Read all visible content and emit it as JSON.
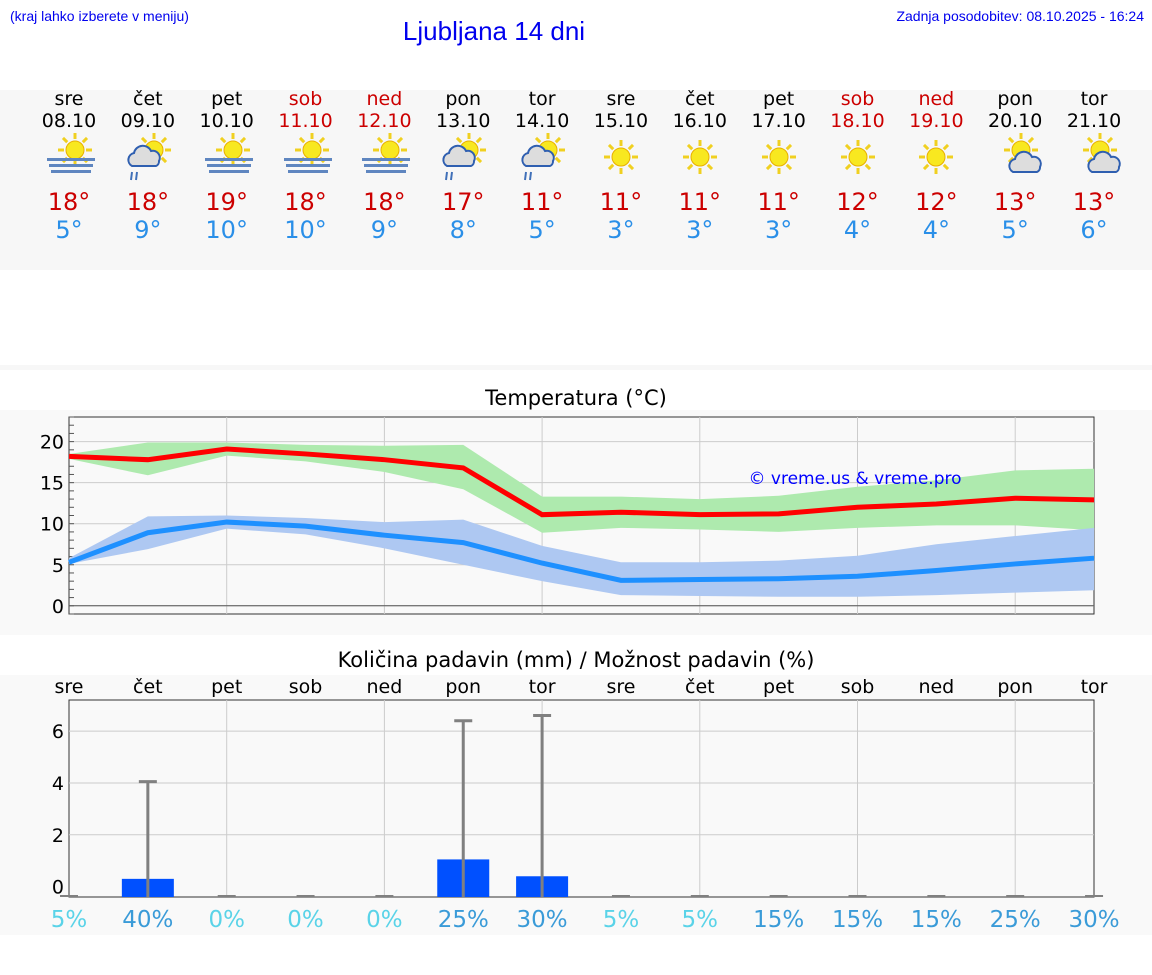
{
  "header": {
    "hint": "(kraj lahko izberete v meniju)",
    "title": "Ljubljana 14 dni",
    "updated": "Zadnja posodobitev: 08.10.2025 - 16:24"
  },
  "colors": {
    "weekday": "#000000",
    "weekend": "#cc0000",
    "max": "#cc0000",
    "min": "#2a8fe8",
    "max_line": "#ff0000",
    "min_line": "#1e90ff",
    "max_band": "#aeeaae",
    "min_band": "#aec8f2",
    "bar": "#0050ff",
    "whisker": "#808080",
    "pct_low": "#5ad3e8",
    "pct_high": "#3a9bd8"
  },
  "days": [
    {
      "name": "sre",
      "date": "08.10",
      "weekend": false,
      "icon": "sun-fog-icon",
      "max": "18°",
      "min": "5°"
    },
    {
      "name": "čet",
      "date": "09.10",
      "weekend": false,
      "icon": "sun-cloud-rain-icon",
      "max": "18°",
      "min": "9°"
    },
    {
      "name": "pet",
      "date": "10.10",
      "weekend": false,
      "icon": "sun-fog-icon",
      "max": "19°",
      "min": "10°"
    },
    {
      "name": "sob",
      "date": "11.10",
      "weekend": true,
      "icon": "sun-fog-icon",
      "max": "18°",
      "min": "10°"
    },
    {
      "name": "ned",
      "date": "12.10",
      "weekend": true,
      "icon": "sun-fog-icon",
      "max": "18°",
      "min": "9°"
    },
    {
      "name": "pon",
      "date": "13.10",
      "weekend": false,
      "icon": "sun-cloud-rain-icon",
      "max": "17°",
      "min": "8°"
    },
    {
      "name": "tor",
      "date": "14.10",
      "weekend": false,
      "icon": "sun-cloud-rain-icon",
      "max": "11°",
      "min": "5°"
    },
    {
      "name": "sre",
      "date": "15.10",
      "weekend": false,
      "icon": "sun-icon",
      "max": "11°",
      "min": "3°"
    },
    {
      "name": "čet",
      "date": "16.10",
      "weekend": false,
      "icon": "sun-icon",
      "max": "11°",
      "min": "3°"
    },
    {
      "name": "pet",
      "date": "17.10",
      "weekend": false,
      "icon": "sun-icon",
      "max": "11°",
      "min": "3°"
    },
    {
      "name": "sob",
      "date": "18.10",
      "weekend": true,
      "icon": "sun-icon",
      "max": "12°",
      "min": "4°"
    },
    {
      "name": "ned",
      "date": "19.10",
      "weekend": true,
      "icon": "sun-icon",
      "max": "12°",
      "min": "4°"
    },
    {
      "name": "pon",
      "date": "20.10",
      "weekend": false,
      "icon": "sun-cloud-icon",
      "max": "13°",
      "min": "5°"
    },
    {
      "name": "tor",
      "date": "21.10",
      "weekend": false,
      "icon": "sun-cloud-icon",
      "max": "13°",
      "min": "6°"
    }
  ],
  "chart_data": [
    {
      "type": "line",
      "title": "Temperatura (°C)",
      "watermark": "© vreme.us & vreme.pro",
      "ylim": [
        -1,
        23
      ],
      "yticks": [
        0,
        5,
        10,
        15,
        20
      ],
      "grid": true,
      "x": [
        "08.10",
        "09.10",
        "10.10",
        "11.10",
        "12.10",
        "13.10",
        "14.10",
        "15.10",
        "16.10",
        "17.10",
        "18.10",
        "19.10",
        "20.10",
        "21.10"
      ],
      "series": [
        {
          "kind": "max",
          "values": [
            18.2,
            17.8,
            19.1,
            18.5,
            17.8,
            16.8,
            11.1,
            11.4,
            11.1,
            11.2,
            12.0,
            12.4,
            13.1,
            12.9
          ],
          "band_high": [
            18.5,
            19.9,
            19.9,
            19.6,
            19.5,
            19.6,
            13.3,
            13.3,
            13.0,
            13.4,
            14.5,
            15.3,
            16.5,
            16.7
          ],
          "band_low": [
            17.9,
            15.9,
            18.3,
            17.6,
            16.3,
            14.2,
            8.9,
            9.5,
            9.3,
            9.0,
            9.5,
            9.8,
            9.8,
            9.2
          ]
        },
        {
          "kind": "min",
          "values": [
            5.3,
            8.9,
            10.2,
            9.7,
            8.6,
            7.7,
            5.2,
            3.1,
            3.2,
            3.3,
            3.6,
            4.3,
            5.1,
            5.8
          ],
          "band_high": [
            5.8,
            10.9,
            11.0,
            10.7,
            10.2,
            10.5,
            7.3,
            5.3,
            5.3,
            5.5,
            6.1,
            7.5,
            8.5,
            9.5
          ],
          "band_low": [
            5.1,
            6.9,
            9.4,
            8.7,
            7.0,
            5.0,
            3.0,
            1.3,
            1.2,
            1.1,
            1.1,
            1.3,
            1.6,
            1.9
          ]
        }
      ]
    },
    {
      "type": "bar",
      "title": "Količina padavin (mm) / Možnost padavin (%)",
      "ylim": [
        -0.4,
        7.2
      ],
      "yticks": [
        0,
        2,
        4,
        6
      ],
      "grid": true,
      "categories": [
        "sre",
        "čet",
        "pet",
        "sob",
        "ned",
        "pon",
        "tor",
        "sre",
        "čet",
        "pet",
        "sob",
        "ned",
        "pon",
        "tor"
      ],
      "values": [
        0,
        0.3,
        0,
        0,
        0,
        1.05,
        0.4,
        0,
        0,
        0,
        0,
        0,
        0,
        0
      ],
      "max_values": [
        0,
        4.05,
        0,
        0,
        0,
        6.4,
        6.6,
        0,
        0,
        0,
        0,
        0,
        0,
        0
      ],
      "probability": [
        "5%",
        "40%",
        "0%",
        "0%",
        "0%",
        "25%",
        "30%",
        "5%",
        "5%",
        "15%",
        "15%",
        "15%",
        "25%",
        "30%"
      ]
    }
  ]
}
